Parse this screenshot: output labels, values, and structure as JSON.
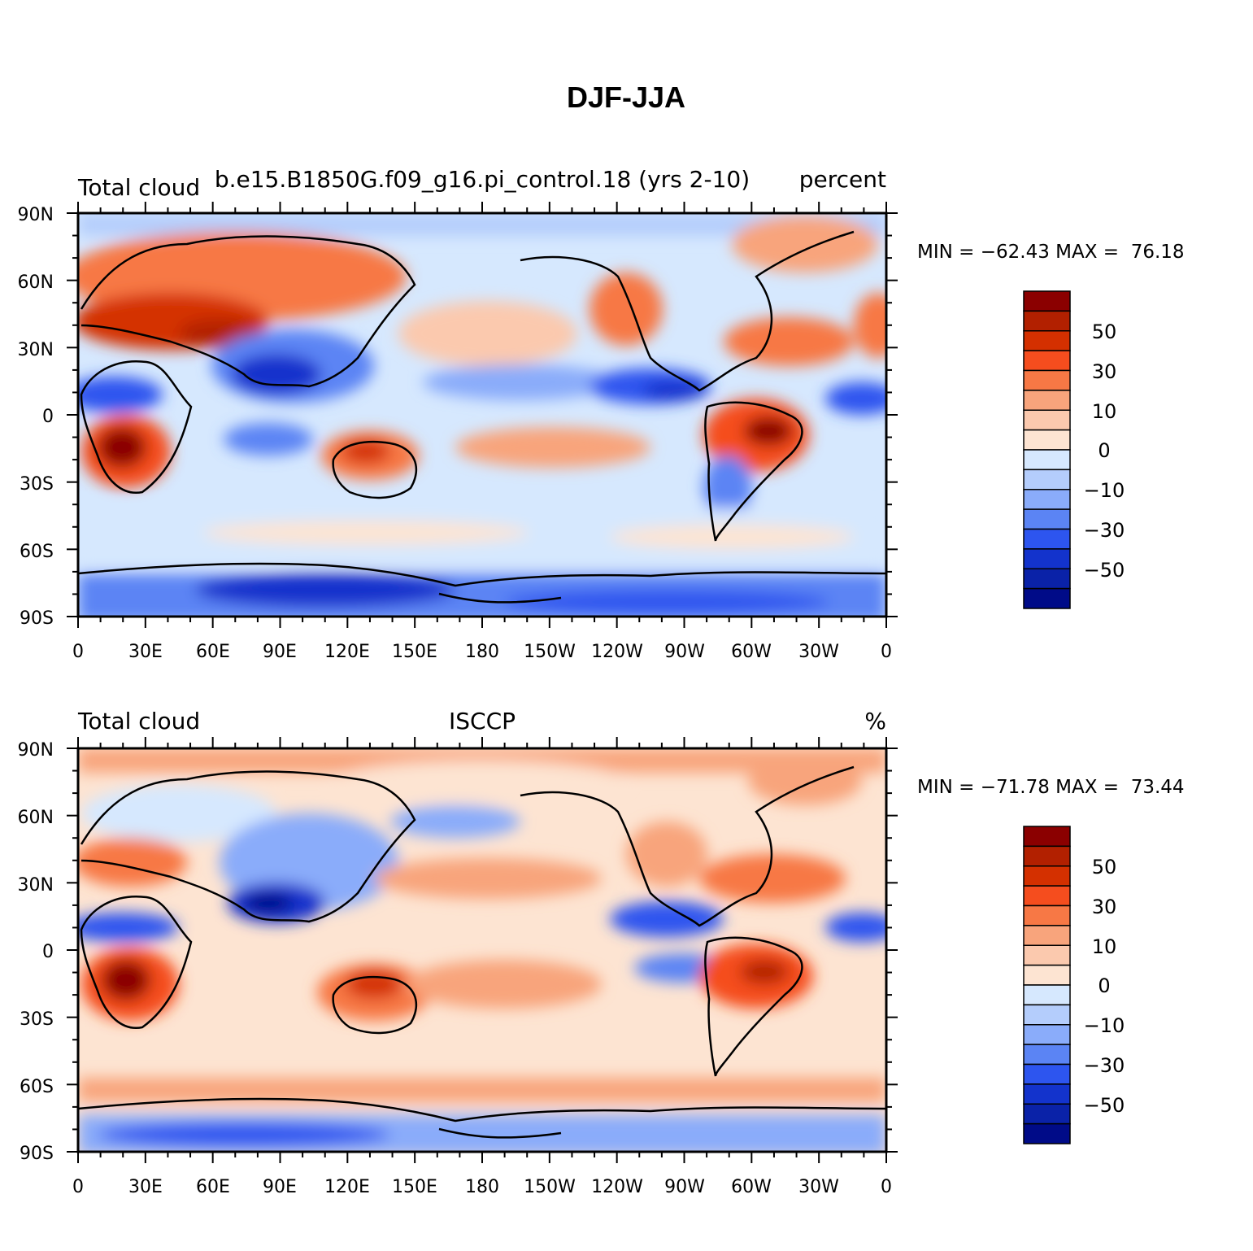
{
  "figure": {
    "title": "DJF-JJA"
  },
  "axes": {
    "y_ticks": [
      "90N",
      "60N",
      "30N",
      "0",
      "30S",
      "60S",
      "90S"
    ],
    "x_ticks": [
      "0",
      "30E",
      "60E",
      "90E",
      "120E",
      "150E",
      "180",
      "150W",
      "120W",
      "90W",
      "60W",
      "30W",
      "0"
    ]
  },
  "panels": [
    {
      "left_title": "Total cloud",
      "center_title": "b.e15.B1850G.f09_g16.pi_control.18 (yrs 2-10)",
      "right_title": "percent",
      "stats": "MIN = −62.43 MAX =  76.18"
    },
    {
      "left_title": "Total cloud",
      "center_title": "ISCCP",
      "right_title": "%",
      "stats": "MIN = −71.78 MAX =  73.44"
    }
  ],
  "colorbar": {
    "colors": [
      "#8b0000",
      "#b22000",
      "#d43000",
      "#f54d1e",
      "#f77845",
      "#f8a47c",
      "#fbc9ae",
      "#fde4d2",
      "#d6e8fe",
      "#b4cdfc",
      "#8aacfa",
      "#5b84f4",
      "#2d55ef",
      "#1333cc",
      "#0a22a8",
      "#000b88"
    ],
    "labels": [
      "50",
      "30",
      "10",
      "0",
      "−10",
      "−30",
      "−50"
    ]
  },
  "legend_colors": {
    "positive": "#d43000",
    "negative": "#1333cc",
    "neutral": "#ffffff"
  }
}
